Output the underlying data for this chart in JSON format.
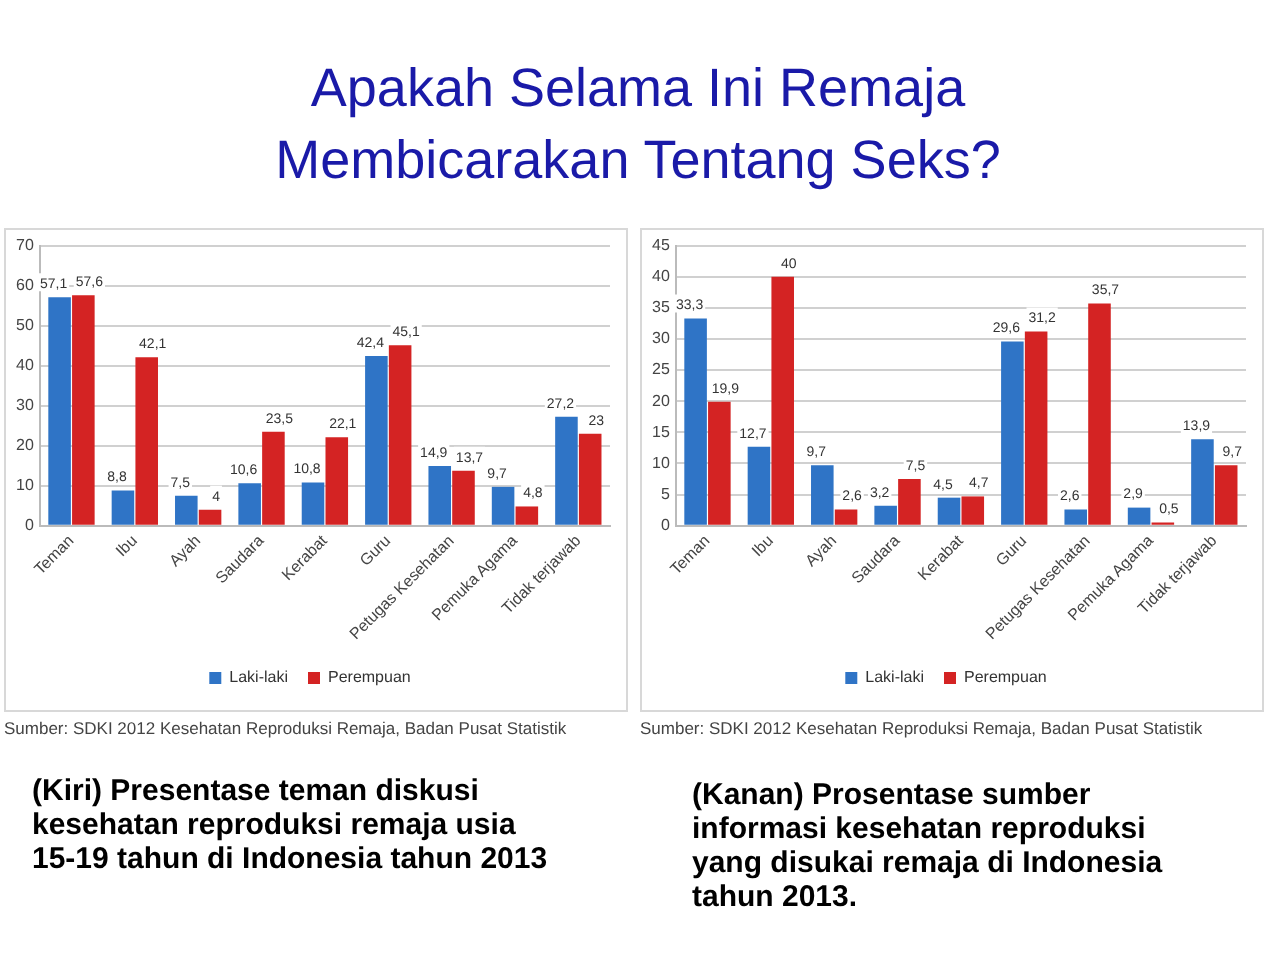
{
  "chart_data": [
    {
      "type": "bar",
      "title": "Apakah Selama Ini Remaja Membicarakan Tentang Seks?",
      "categories": [
        "Teman",
        "Ibu",
        "Ayah",
        "Saudara",
        "Kerabat",
        "Guru",
        "Petugas Kesehatan",
        "Pemuka Agama",
        "Tidak terjawab"
      ],
      "series": [
        {
          "name": "Laki-laki",
          "color": "#2f74c6",
          "values": [
            57.1,
            8.8,
            7.5,
            10.6,
            10.8,
            42.4,
            14.9,
            9.7,
            27.2
          ],
          "value_labels": [
            "57,1",
            "8,8",
            "7,5",
            "10,6",
            "10,8",
            "42,4",
            "14,9",
            "9,7",
            "27,2"
          ]
        },
        {
          "name": "Perempuan",
          "color": "#d42323",
          "values": [
            57.6,
            42.1,
            4,
            23.5,
            22.1,
            45.1,
            13.7,
            4.8,
            23
          ],
          "value_labels": [
            "57,6",
            "42,1",
            "4",
            "23,5",
            "22,1",
            "45,1",
            "13,7",
            "4,8",
            "23"
          ]
        }
      ],
      "ylim": [
        0,
        70
      ],
      "yticks": [
        0,
        10,
        20,
        30,
        40,
        50,
        60,
        70
      ],
      "grid": "y",
      "legend": "bottom",
      "annotations": [
        "Sumber: SDKI 2012 Kesehatan Reproduksi Remaja, Badan Pusat Statistik",
        "(Kiri) Presentase teman diskusi kesehatan reproduksi remaja usia 15-19 tahun di Indonesia tahun 2013"
      ]
    },
    {
      "type": "bar",
      "categories": [
        "Teman",
        "Ibu",
        "Ayah",
        "Saudara",
        "Kerabat",
        "Guru",
        "Petugas Kesehatan",
        "Pemuka Agama",
        "Tidak terjawab"
      ],
      "series": [
        {
          "name": "Laki-laki",
          "color": "#2f74c6",
          "values": [
            33.3,
            12.7,
            9.7,
            3.2,
            4.5,
            29.6,
            2.6,
            2.9,
            13.9
          ],
          "value_labels": [
            "33,3",
            "12,7",
            "9,7",
            "3,2",
            "4,5",
            "29,6",
            "2,6",
            "2,9",
            "13,9"
          ]
        },
        {
          "name": "Perempuan",
          "color": "#d42323",
          "values": [
            19.9,
            40,
            2.6,
            7.5,
            4.7,
            31.2,
            35.7,
            0.5,
            9.7
          ],
          "value_labels": [
            "19,9",
            "40",
            "2,6",
            "7,5",
            "4,7",
            "31,2",
            "35,7",
            "0,5",
            "9,7"
          ]
        }
      ],
      "ylim": [
        0,
        45
      ],
      "yticks": [
        0,
        5,
        10,
        15,
        20,
        25,
        30,
        35,
        40,
        45
      ],
      "grid": "y",
      "legend": "bottom",
      "annotations": [
        "Sumber: SDKI 2012 Kesehatan Reproduksi Remaja, Badan Pusat Statistik",
        "(Kanan) Prosentase sumber informasi kesehatan reproduksi yang disukai remaja di Indonesia tahun 2013."
      ]
    }
  ]
}
